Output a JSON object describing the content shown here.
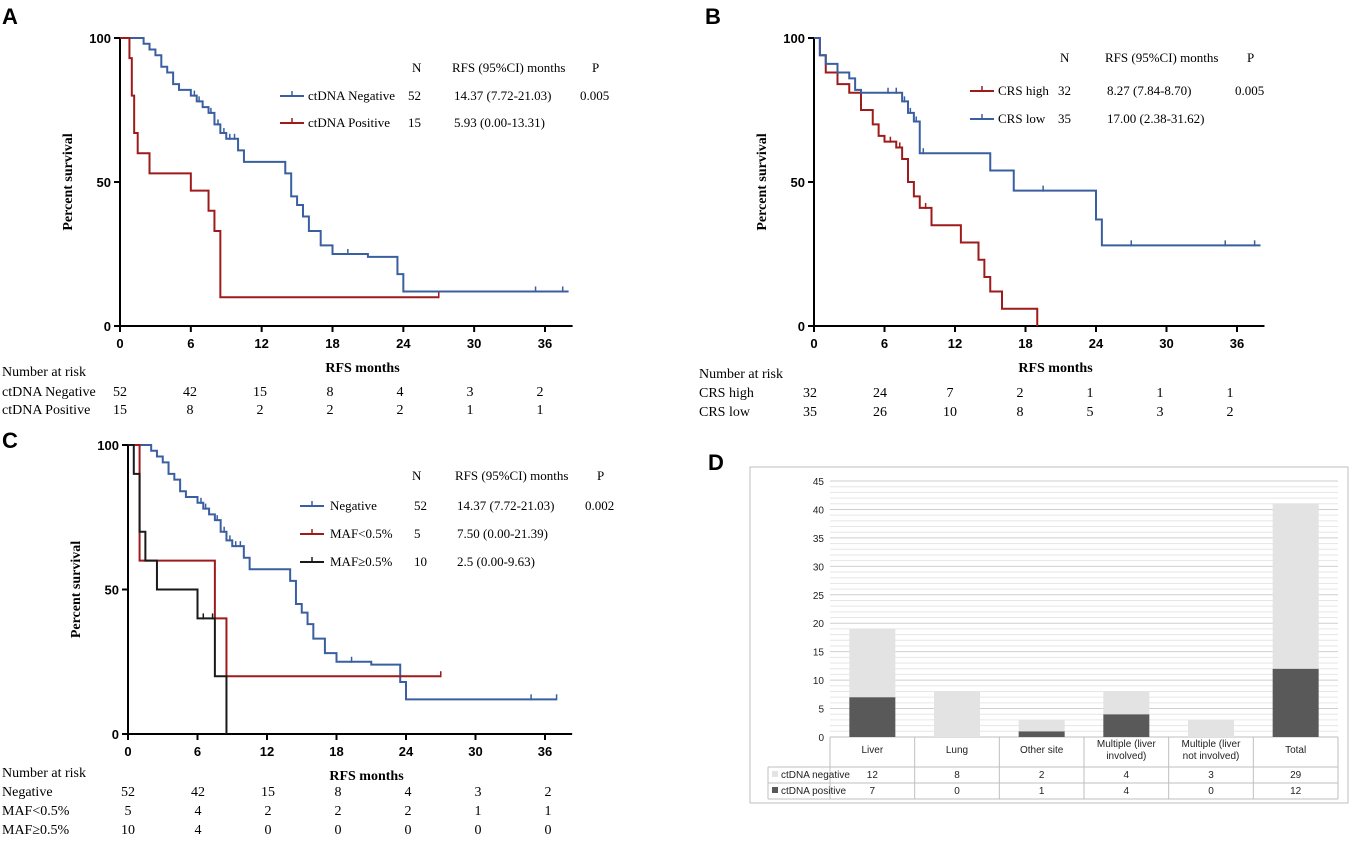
{
  "panels": {
    "A": "A",
    "B": "B",
    "C": "C",
    "D": "D"
  },
  "colors": {
    "blue": "#3a5fa0",
    "red": "#9e1b1b",
    "black": "#1a1a1a",
    "bar_light": "#e3e3e3",
    "bar_dark": "#595959"
  },
  "chart_data": [
    {
      "id": "A",
      "type": "line",
      "xlabel": "RFS months",
      "ylabel": "Percent survival",
      "xticks": [
        "0",
        "6",
        "12",
        "18",
        "24",
        "30",
        "36"
      ],
      "yticks": [
        "0",
        "50",
        "100"
      ],
      "xlim": [
        0,
        38
      ],
      "ylim": [
        0,
        100
      ],
      "legend_headers": [
        "N",
        "RFS (95%CI) months",
        "P"
      ],
      "legend_p": "0.005",
      "series": [
        {
          "name": "ctDNA Negative",
          "color": "blue",
          "n": "52",
          "rfs": "14.37 (7.72-21.03)",
          "x": [
            0,
            2,
            2.5,
            3,
            3.5,
            4,
            4.5,
            5,
            6,
            6.5,
            7,
            7.5,
            8,
            8.5,
            9,
            10,
            10.5,
            12,
            14,
            14.5,
            15,
            15.5,
            16,
            17,
            18,
            21,
            23.5,
            24,
            38
          ],
          "y": [
            100,
            98,
            96,
            94,
            90,
            88,
            84,
            82,
            80,
            78,
            76,
            74,
            70,
            67,
            65,
            61,
            57,
            57,
            53,
            45,
            42,
            38,
            33,
            28,
            25,
            24,
            18,
            12,
            12
          ],
          "censor_x": [
            6.3,
            6.7,
            7.7,
            8.3,
            8.8,
            9.3,
            9.7,
            19.3,
            35.2,
            37.5
          ]
        },
        {
          "name": "ctDNA Positive",
          "color": "red",
          "n": "15",
          "rfs": "5.93 (0.00-13.31)",
          "x": [
            0,
            0.8,
            1,
            1.2,
            1.5,
            2.5,
            6,
            7.5,
            8,
            8.5,
            27
          ],
          "y": [
            100,
            93,
            80,
            67,
            60,
            53,
            47,
            40,
            33,
            10,
            10
          ],
          "censor_x": [
            27
          ]
        }
      ],
      "risk_title": "Number at risk",
      "risk_rows": [
        {
          "label": "ctDNA Negative",
          "values": [
            "52",
            "42",
            "15",
            "8",
            "4",
            "3",
            "2"
          ]
        },
        {
          "label": "ctDNA Positive",
          "values": [
            "15",
            "8",
            "2",
            "2",
            "2",
            "1",
            "1"
          ]
        }
      ]
    },
    {
      "id": "B",
      "type": "line",
      "xlabel": "RFS months",
      "ylabel": "Percent survival",
      "xticks": [
        "0",
        "6",
        "12",
        "18",
        "24",
        "30",
        "36"
      ],
      "yticks": [
        "0",
        "50",
        "100"
      ],
      "xlim": [
        0,
        38
      ],
      "ylim": [
        0,
        100
      ],
      "legend_headers": [
        "N",
        "RFS (95%CI) months",
        "P"
      ],
      "legend_p": "0.005",
      "series": [
        {
          "name": "CRS high",
          "color": "red",
          "n": "32",
          "rfs": "8.27 (7.84-8.70)",
          "x": [
            0,
            0.5,
            1,
            2,
            3,
            4,
            5,
            5.5,
            6,
            7,
            7.5,
            8,
            8.5,
            9,
            10,
            12.5,
            14,
            14.5,
            15,
            16,
            19
          ],
          "y": [
            100,
            94,
            88,
            84,
            81,
            75,
            70,
            66,
            64,
            62,
            58,
            50,
            45,
            41,
            35,
            29,
            23,
            17,
            12,
            6,
            0
          ],
          "censor_x": [
            6.5,
            7.3,
            9.5
          ]
        },
        {
          "name": "CRS low",
          "color": "blue",
          "n": "35",
          "rfs": "17.00 (2.38-31.62)",
          "x": [
            0,
            0.5,
            1,
            2,
            3,
            3.5,
            4,
            6.5,
            7.5,
            8,
            8.5,
            9,
            15,
            17,
            24,
            24.5,
            38
          ],
          "y": [
            100,
            94,
            91,
            88,
            86,
            82,
            81,
            81,
            78,
            74,
            71,
            60,
            54,
            47,
            37,
            28,
            28
          ],
          "censor_x": [
            6.3,
            7.0,
            7.7,
            8.2,
            8.7,
            9.3,
            19.5,
            27,
            35,
            37.5
          ]
        }
      ],
      "risk_title": "Number at risk",
      "risk_rows": [
        {
          "label": "CRS high",
          "values": [
            "32",
            "24",
            "7",
            "2",
            "1",
            "1",
            "1"
          ]
        },
        {
          "label": "CRS low",
          "values": [
            "35",
            "26",
            "10",
            "8",
            "5",
            "3",
            "2"
          ]
        }
      ]
    },
    {
      "id": "C",
      "type": "line",
      "xlabel": "RFS months",
      "ylabel": "Percent survival",
      "xticks": [
        "0",
        "6",
        "12",
        "18",
        "24",
        "30",
        "36"
      ],
      "yticks": [
        "0",
        "50",
        "100"
      ],
      "xlim": [
        0,
        38
      ],
      "ylim": [
        0,
        100
      ],
      "legend_headers": [
        "N",
        "RFS (95%CI) months",
        "P"
      ],
      "legend_p": "0.002",
      "series": [
        {
          "name": "Negative",
          "color": "blue",
          "n": "52",
          "rfs": "14.37 (7.72-21.03)",
          "x": [
            0,
            2,
            2.5,
            3,
            3.5,
            4,
            4.5,
            5,
            6,
            6.5,
            7,
            7.5,
            8,
            8.5,
            9,
            10,
            10.5,
            12,
            14,
            14.5,
            15,
            15.5,
            16,
            17,
            18,
            21,
            23.5,
            24,
            37
          ],
          "y": [
            100,
            98,
            96,
            94,
            90,
            88,
            84,
            82,
            80,
            78,
            76,
            74,
            70,
            67,
            65,
            61,
            57,
            57,
            53,
            45,
            42,
            38,
            33,
            28,
            25,
            24,
            18,
            12,
            12
          ],
          "censor_x": [
            6.3,
            6.7,
            7.7,
            8.3,
            8.8,
            9.3,
            9.7,
            19.3,
            34.8,
            37
          ]
        },
        {
          "name": "MAF<0.5%",
          "color": "red",
          "n": "5",
          "rfs": "7.50 (0.00-21.39)",
          "x": [
            0,
            1,
            7.5,
            8.5,
            27
          ],
          "y": [
            100,
            60,
            40,
            20,
            20
          ],
          "censor_x": [
            27
          ]
        },
        {
          "name": "MAF≥0.5%",
          "color": "black",
          "n": "10",
          "rfs": "2.5 (0.00-9.63)",
          "x": [
            0,
            0.5,
            1,
            1.5,
            2.5,
            6,
            7.5,
            8.5
          ],
          "y": [
            100,
            90,
            70,
            60,
            50,
            40,
            20,
            0
          ],
          "censor_x": [
            6.5,
            7.3
          ]
        }
      ],
      "risk_title": "Number at risk",
      "risk_rows": [
        {
          "label": "Negative",
          "values": [
            "52",
            "42",
            "15",
            "8",
            "4",
            "3",
            "2"
          ]
        },
        {
          "label": "MAF<0.5%",
          "values": [
            "5",
            "4",
            "2",
            "2",
            "2",
            "1",
            "1"
          ]
        },
        {
          "label": "MAF≥0.5%",
          "values": [
            "10",
            "4",
            "0",
            "0",
            "0",
            "0",
            "0"
          ]
        }
      ]
    },
    {
      "id": "D",
      "type": "bar",
      "stacked": true,
      "categories": [
        "Liver",
        "Lung",
        "Other site",
        "Multiple (liver involved)",
        "Multiple (liver not involved)",
        "Total"
      ],
      "category_lines": [
        [
          "Liver"
        ],
        [
          "Lung"
        ],
        [
          "Other site"
        ],
        [
          "Multiple (liver",
          "involved)"
        ],
        [
          "Multiple (liver",
          "not involved)"
        ],
        [
          "Total"
        ]
      ],
      "yticks": [
        "0",
        "5",
        "10",
        "15",
        "20",
        "25",
        "30",
        "35",
        "40",
        "45"
      ],
      "ylim": [
        0,
        45
      ],
      "series": [
        {
          "name": "ctDNA positive",
          "color": "bar_dark",
          "values": [
            7,
            0,
            1,
            4,
            0,
            12
          ],
          "labels": [
            "7",
            "0",
            "1",
            "4",
            "0",
            "12"
          ]
        },
        {
          "name": "ctDNA negative",
          "color": "bar_light",
          "values": [
            12,
            8,
            2,
            4,
            3,
            29
          ],
          "labels": [
            "12",
            "8",
            "2",
            "4",
            "3",
            "29"
          ]
        }
      ]
    }
  ]
}
